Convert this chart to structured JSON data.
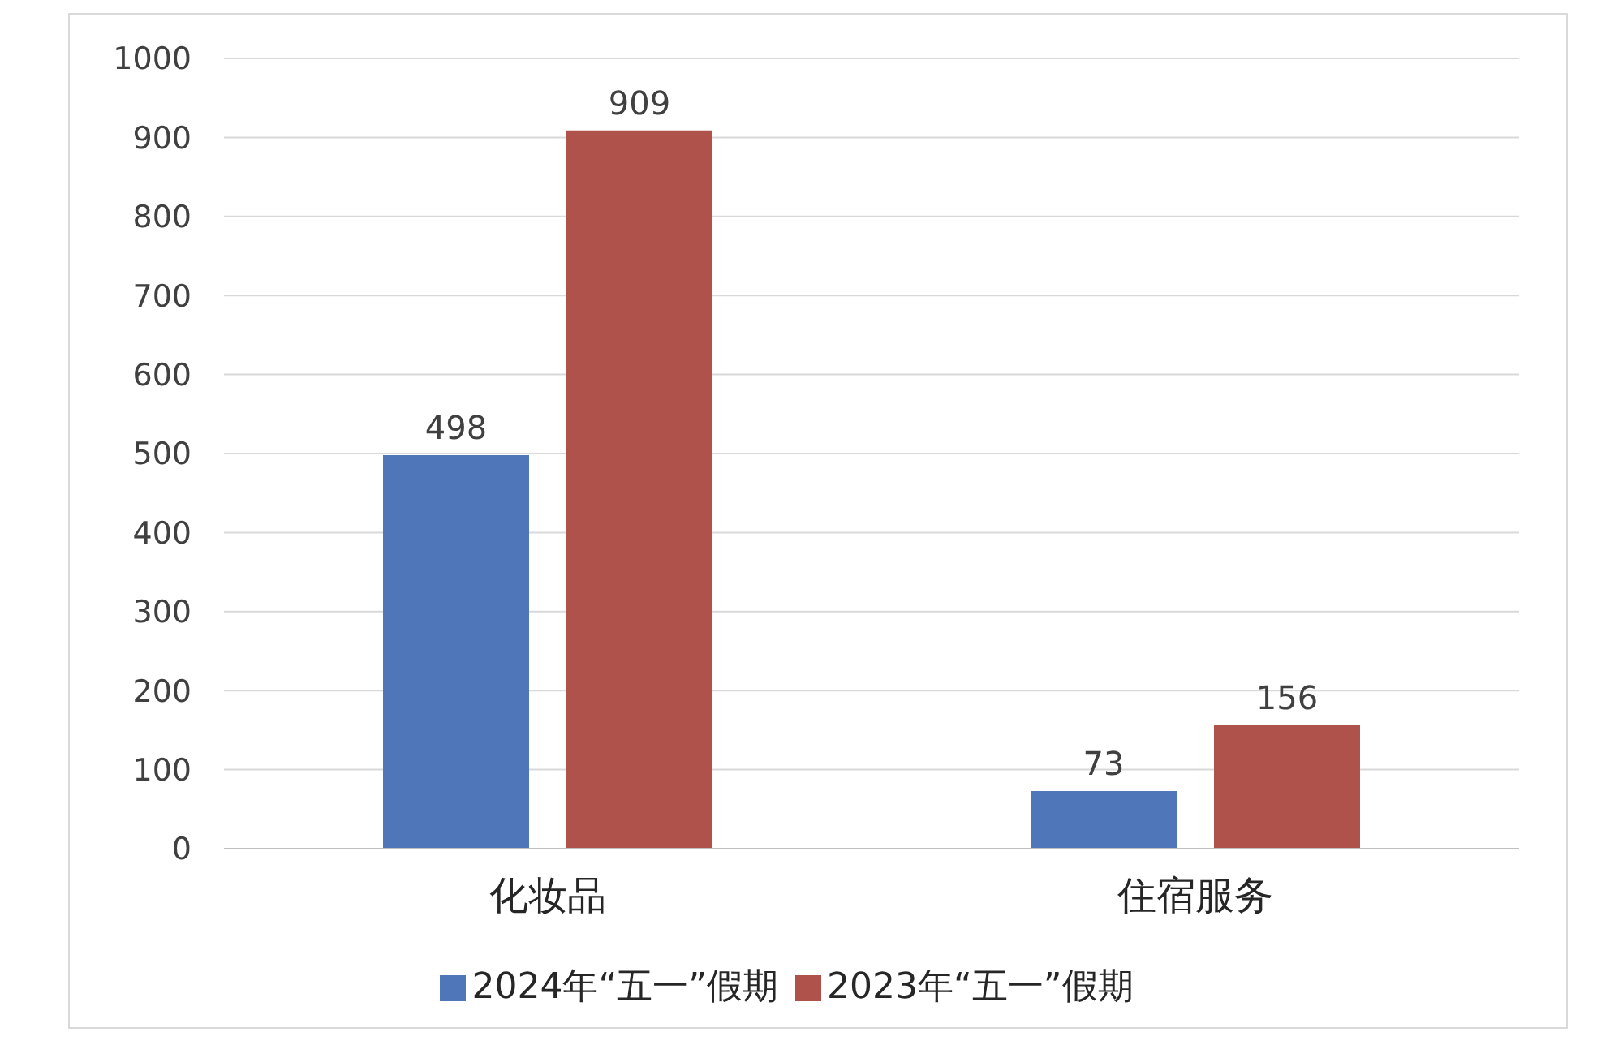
{
  "chart_data": {
    "type": "bar",
    "categories": [
      "化妆品",
      "住宿服务"
    ],
    "series": [
      {
        "name": "2024年“五一”假期",
        "color": "#4f76b8",
        "values": [
          498,
          73
        ]
      },
      {
        "name": "2023年“五一”假期",
        "color": "#b0524c",
        "values": [
          909,
          156
        ]
      }
    ],
    "ylim": [
      0,
      1000
    ],
    "yticks": [
      0,
      100,
      200,
      300,
      400,
      500,
      600,
      700,
      800,
      900,
      1000
    ],
    "grid": "y",
    "legend": "bottom",
    "data_labels": true
  }
}
